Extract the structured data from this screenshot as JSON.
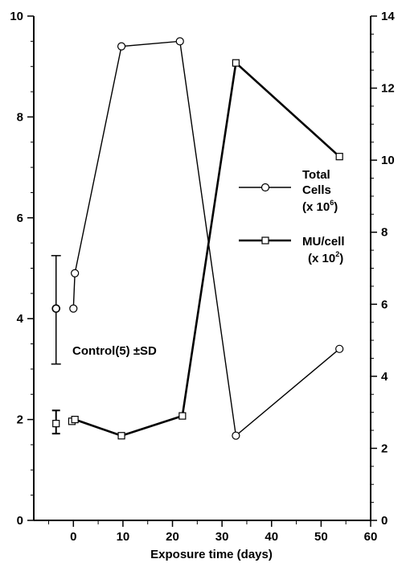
{
  "chart_data": {
    "type": "line",
    "xlabel": "Exposure time (days)",
    "x_ticks": [
      "0",
      "10",
      "20",
      "30",
      "40",
      "50",
      "60"
    ],
    "xlim": [
      -8,
      60
    ],
    "y_left_ticks": [
      "0",
      "2",
      "4",
      "6",
      "8",
      "10"
    ],
    "ylim_left": [
      0,
      10
    ],
    "y_right_ticks": [
      "0",
      "2",
      "4",
      "6",
      "8",
      "10",
      "12",
      "14"
    ],
    "ylim_right": [
      0,
      14
    ],
    "grid": false,
    "legend_position": "right",
    "series": [
      {
        "name": "Total Cells (x 10⁶)",
        "legend_lines": [
          "Total",
          "Cells",
          "(x 10",
          "6",
          ")"
        ],
        "axis": "left",
        "marker": "circle",
        "points": [
          [
            0,
            4.2
          ],
          [
            0.3,
            4.9
          ],
          [
            9.7,
            9.4
          ],
          [
            21.5,
            9.5
          ],
          [
            32.8,
            1.68
          ],
          [
            53.7,
            3.4
          ]
        ]
      },
      {
        "name": "MU/cell (x 10²)",
        "legend_lines": [
          "MU/cell",
          "(x 10",
          "2",
          ")"
        ],
        "axis": "right",
        "marker": "square",
        "points": [
          [
            -0.3,
            2.75
          ],
          [
            0.3,
            2.8
          ],
          [
            9.7,
            2.35
          ],
          [
            22,
            2.9
          ],
          [
            32.8,
            12.7
          ],
          [
            53.7,
            10.1
          ]
        ]
      }
    ],
    "controls": {
      "label": "Control(5) ±SD",
      "x": -3.5,
      "total_cells": {
        "mean": 4.2,
        "sd_low": 3.1,
        "sd_high": 5.25
      },
      "mu_cell": {
        "mean": 1.92,
        "sd_low": 1.72,
        "sd_high": 2.18
      }
    }
  }
}
